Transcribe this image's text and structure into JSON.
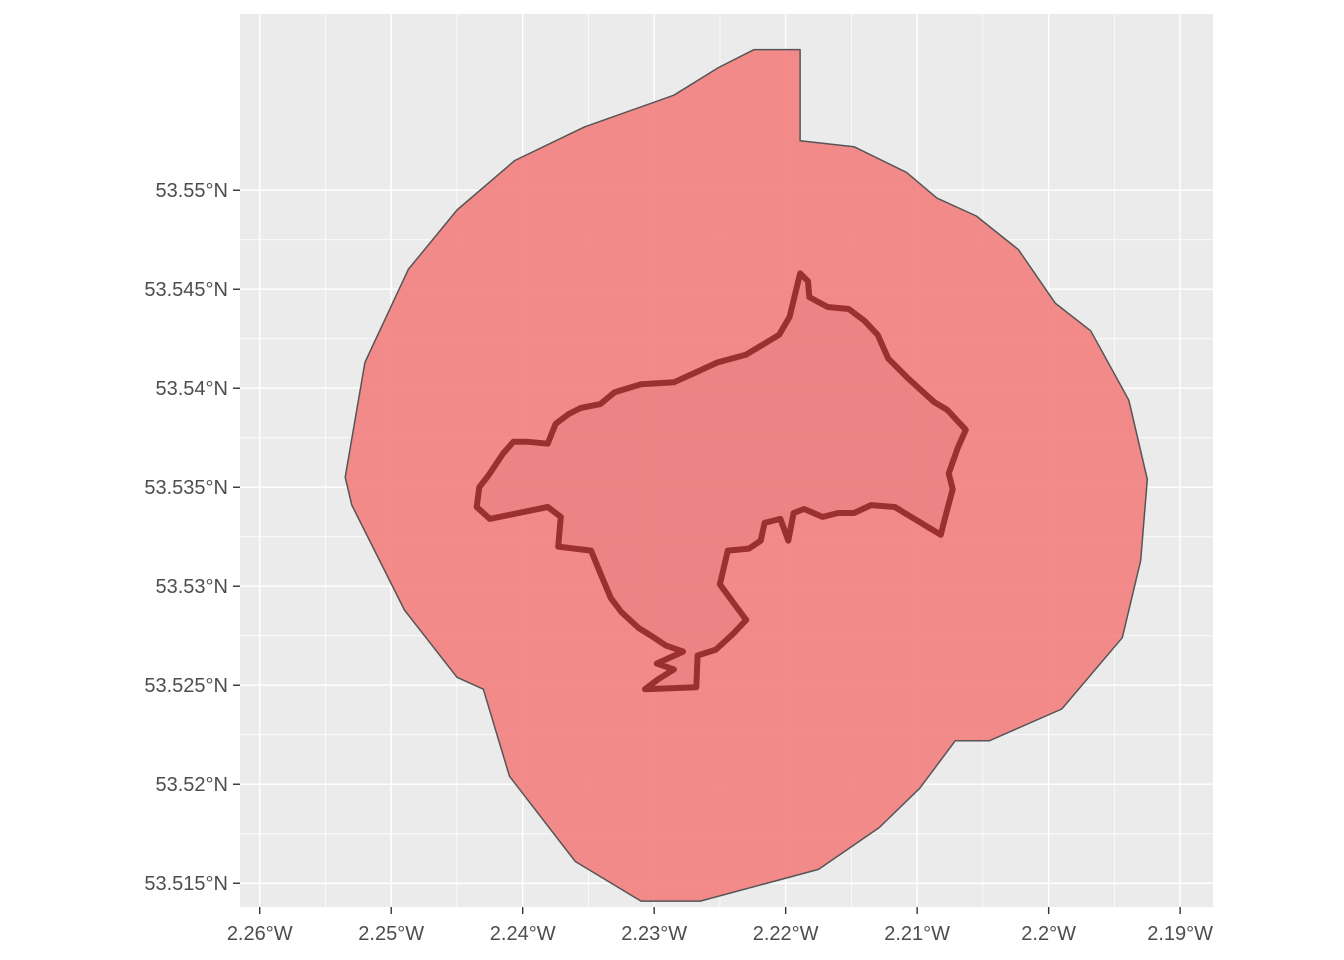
{
  "chart_data": {
    "type": "map",
    "title": "",
    "xlabel": "",
    "ylabel": "",
    "grid": true,
    "legend": "none",
    "xlim": [
      -2.2615,
      -2.1875
    ],
    "ylim": [
      53.5138,
      53.5589
    ],
    "x_ticks": [
      {
        "value": -2.26,
        "label": "2.26°W"
      },
      {
        "value": -2.25,
        "label": "2.25°W"
      },
      {
        "value": -2.24,
        "label": "2.24°W"
      },
      {
        "value": -2.23,
        "label": "2.23°W"
      },
      {
        "value": -2.22,
        "label": "2.22°W"
      },
      {
        "value": -2.21,
        "label": "2.21°W"
      },
      {
        "value": -2.2,
        "label": "2.2°W"
      },
      {
        "value": -2.19,
        "label": "2.19°W"
      }
    ],
    "y_ticks": [
      {
        "value": 53.515,
        "label": "53.515°N"
      },
      {
        "value": 53.52,
        "label": "53.52°N"
      },
      {
        "value": 53.525,
        "label": "53.525°N"
      },
      {
        "value": 53.53,
        "label": "53.53°N"
      },
      {
        "value": 53.535,
        "label": "53.535°N"
      },
      {
        "value": 53.54,
        "label": "53.54°N"
      },
      {
        "value": 53.545,
        "label": "53.545°N"
      },
      {
        "value": 53.55,
        "label": "53.55°N"
      }
    ],
    "colors": {
      "panel": "#ebebeb",
      "buffer_fill": "#f47f80",
      "buffer_stroke": "#555555",
      "boundary_stroke": "#9b3030",
      "boundary_fill": "#e87f80"
    },
    "buffer": {
      "name": "",
      "coords": [
        [
          -2.2189,
          53.5525
        ],
        [
          -2.2148,
          53.5522
        ],
        [
          -2.2108,
          53.5509
        ],
        [
          -2.2085,
          53.5496
        ],
        [
          -2.2055,
          53.5487
        ],
        [
          -2.2023,
          53.547
        ],
        [
          -2.1995,
          53.5443
        ],
        [
          -2.1968,
          53.5429
        ],
        [
          -2.1939,
          53.5394
        ],
        [
          -2.1925,
          53.5354
        ],
        [
          -2.193,
          53.5313
        ],
        [
          -2.1944,
          53.5274
        ],
        [
          -2.199,
          53.5238
        ],
        [
          -2.2045,
          53.5222
        ],
        [
          -2.2071,
          53.5222
        ],
        [
          -2.2098,
          53.5198
        ],
        [
          -2.2129,
          53.5178
        ],
        [
          -2.2175,
          53.5157
        ],
        [
          -2.2265,
          53.5141
        ],
        [
          -2.231,
          53.5141
        ],
        [
          -2.236,
          53.5161
        ],
        [
          -2.241,
          53.5204
        ],
        [
          -2.243,
          53.5248
        ],
        [
          -2.245,
          53.5254
        ],
        [
          -2.249,
          53.5288
        ],
        [
          -2.253,
          53.5341
        ],
        [
          -2.2535,
          53.5355
        ],
        [
          -2.252,
          53.5413
        ],
        [
          -2.2487,
          53.546
        ],
        [
          -2.245,
          53.549
        ],
        [
          -2.2406,
          53.5515
        ],
        [
          -2.2353,
          53.5532
        ],
        [
          -2.2285,
          53.5548
        ],
        [
          -2.2251,
          53.5562
        ],
        [
          -2.2224,
          53.5571
        ],
        [
          -2.2189,
          53.5571
        ]
      ]
    },
    "boundary": {
      "name": "",
      "coords": [
        [
          -2.2189,
          53.5458
        ],
        [
          -2.2183,
          53.5454
        ],
        [
          -2.2182,
          53.5446
        ],
        [
          -2.2168,
          53.5441
        ],
        [
          -2.2152,
          53.544
        ],
        [
          -2.214,
          53.5434
        ],
        [
          -2.213,
          53.5427
        ],
        [
          -2.2122,
          53.5415
        ],
        [
          -2.2107,
          53.5405
        ],
        [
          -2.2087,
          53.5393
        ],
        [
          -2.2077,
          53.5389
        ],
        [
          -2.2063,
          53.5379
        ],
        [
          -2.2069,
          53.537
        ],
        [
          -2.2076,
          53.5357
        ],
        [
          -2.2073,
          53.5349
        ],
        [
          -2.2079,
          53.5334
        ],
        [
          -2.2082,
          53.5326
        ],
        [
          -2.2102,
          53.5334
        ],
        [
          -2.2117,
          53.534
        ],
        [
          -2.2135,
          53.5341
        ],
        [
          -2.2148,
          53.5337
        ],
        [
          -2.216,
          53.5337
        ],
        [
          -2.2172,
          53.5335
        ],
        [
          -2.2186,
          53.5339
        ],
        [
          -2.2194,
          53.5337
        ],
        [
          -2.2198,
          53.5323
        ],
        [
          -2.2204,
          53.5334
        ],
        [
          -2.2216,
          53.5332
        ],
        [
          -2.2219,
          53.5323
        ],
        [
          -2.2228,
          53.5319
        ],
        [
          -2.2244,
          53.5318
        ],
        [
          -2.225,
          53.5301
        ],
        [
          -2.2239,
          53.5291
        ],
        [
          -2.223,
          53.5283
        ],
        [
          -2.224,
          53.5276
        ],
        [
          -2.2253,
          53.5268
        ],
        [
          -2.2267,
          53.5265
        ],
        [
          -2.2268,
          53.5249
        ],
        [
          -2.2307,
          53.5248
        ],
        [
          -2.2297,
          53.5253
        ],
        [
          -2.2285,
          53.5258
        ],
        [
          -2.2298,
          53.5261
        ],
        [
          -2.2278,
          53.5267
        ],
        [
          -2.2291,
          53.527
        ],
        [
          -2.23,
          53.5274
        ],
        [
          -2.2312,
          53.5279
        ],
        [
          -2.2325,
          53.5287
        ],
        [
          -2.2333,
          53.5294
        ],
        [
          -2.234,
          53.5305
        ],
        [
          -2.2348,
          53.5318
        ],
        [
          -2.2373,
          53.532
        ],
        [
          -2.2371,
          53.5335
        ],
        [
          -2.2381,
          53.534
        ],
        [
          -2.2425,
          53.5334
        ],
        [
          -2.2435,
          53.534
        ],
        [
          -2.2433,
          53.535
        ],
        [
          -2.2426,
          53.5356
        ],
        [
          -2.2415,
          53.5367
        ],
        [
          -2.2407,
          53.5373
        ],
        [
          -2.2397,
          53.5373
        ],
        [
          -2.2381,
          53.5372
        ],
        [
          -2.2375,
          53.5382
        ],
        [
          -2.2365,
          53.5387
        ],
        [
          -2.2356,
          53.539
        ],
        [
          -2.2341,
          53.5392
        ],
        [
          -2.233,
          53.5398
        ],
        [
          -2.231,
          53.5402
        ],
        [
          -2.2285,
          53.5403
        ],
        [
          -2.2265,
          53.5409
        ],
        [
          -2.2252,
          53.5413
        ],
        [
          -2.223,
          53.5417
        ],
        [
          -2.2205,
          53.5427
        ],
        [
          -2.2197,
          53.5436
        ],
        [
          -2.2189,
          53.5458
        ]
      ]
    }
  }
}
